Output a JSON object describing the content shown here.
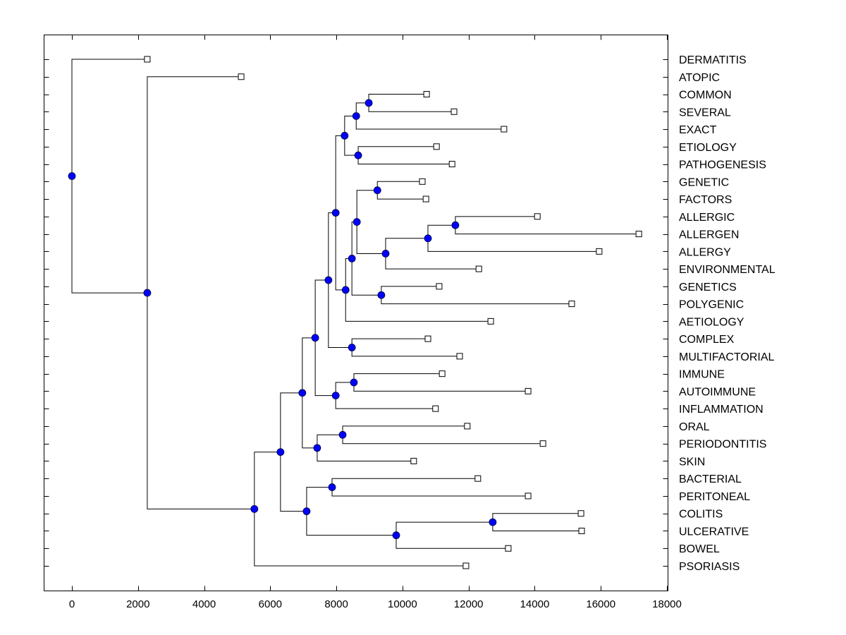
{
  "chart_data": {
    "type": "dendrogram",
    "title": "",
    "xlabel": "",
    "ylabel": "",
    "xlim": [
      -800,
      18000
    ],
    "xticks": [
      0,
      2000,
      4000,
      6000,
      8000,
      10000,
      12000,
      14000,
      16000,
      18000
    ],
    "xtick_labels": [
      "0",
      "2000",
      "4000",
      "6000",
      "8000",
      "10000",
      "12000",
      "14000",
      "16000",
      "18000"
    ],
    "grid": false,
    "legend": "none",
    "node_color": "#0000ff",
    "leaf_marker": "square",
    "leaves": [
      {
        "label": "DERMATITIS",
        "value": 2280
      },
      {
        "label": "ATOPIC",
        "value": 5120
      },
      {
        "label": "COMMON",
        "value": 10730
      },
      {
        "label": "SEVERAL",
        "value": 11560
      },
      {
        "label": "EXACT",
        "value": 13070
      },
      {
        "label": "ETIOLOGY",
        "value": 11030
      },
      {
        "label": "PATHOGENESIS",
        "value": 11500
      },
      {
        "label": "GENETIC",
        "value": 10600
      },
      {
        "label": "FACTORS",
        "value": 10710
      },
      {
        "label": "ALLERGIC",
        "value": 14080
      },
      {
        "label": "ALLERGEN",
        "value": 17150
      },
      {
        "label": "ALLERGY",
        "value": 15950
      },
      {
        "label": "ENVIRONMENTAL",
        "value": 12310
      },
      {
        "label": "GENETICS",
        "value": 11110
      },
      {
        "label": "POLYGENIC",
        "value": 15120
      },
      {
        "label": "AETIOLOGY",
        "value": 12670
      },
      {
        "label": "COMPLEX",
        "value": 10770
      },
      {
        "label": "MULTIFACTORIAL",
        "value": 11730
      },
      {
        "label": "IMMUNE",
        "value": 11200
      },
      {
        "label": "AUTOIMMUNE",
        "value": 13800
      },
      {
        "label": "INFLAMMATION",
        "value": 11000
      },
      {
        "label": "ORAL",
        "value": 11960
      },
      {
        "label": "PERIODONTITIS",
        "value": 14250
      },
      {
        "label": "SKIN",
        "value": 10340
      },
      {
        "label": "BACTERIAL",
        "value": 12280
      },
      {
        "label": "PERITONEAL",
        "value": 13800
      },
      {
        "label": "COLITIS",
        "value": 15400
      },
      {
        "label": "ULCERATIVE",
        "value": 15420
      },
      {
        "label": "BOWEL",
        "value": 13200
      },
      {
        "label": "PSORIASIS",
        "value": 11920
      }
    ],
    "nodes": [
      {
        "id": "n_common_several",
        "value": 8980,
        "children": [
          "COMMON",
          "SEVERAL"
        ]
      },
      {
        "id": "n_exact",
        "value": 8600,
        "children": [
          "n_common_several",
          "EXACT"
        ]
      },
      {
        "id": "n_etiol_patho",
        "value": 8660,
        "children": [
          "ETIOLOGY",
          "PATHOGENESIS"
        ]
      },
      {
        "id": "n_top",
        "value": 8250,
        "children": [
          "n_exact",
          "n_etiol_patho"
        ]
      },
      {
        "id": "n_genetic_factors",
        "value": 9240,
        "children": [
          "GENETIC",
          "FACTORS"
        ]
      },
      {
        "id": "n_allergic_allergen",
        "value": 11600,
        "children": [
          "ALLERGIC",
          "ALLERGEN"
        ]
      },
      {
        "id": "n_allergy",
        "value": 10770,
        "children": [
          "n_allergic_allergen",
          "ALLERGY"
        ]
      },
      {
        "id": "n_environmental",
        "value": 9490,
        "children": [
          "n_allergy",
          "ENVIRONMENTAL"
        ]
      },
      {
        "id": "n_gen_allergy",
        "value": 8620,
        "children": [
          "n_genetic_factors",
          "n_environmental"
        ]
      },
      {
        "id": "n_genetics_polygenic",
        "value": 9360,
        "children": [
          "GENETICS",
          "POLYGENIC"
        ]
      },
      {
        "id": "n_mid1",
        "value": 8470,
        "children": [
          "n_gen_allergy",
          "n_genetics_polygenic"
        ]
      },
      {
        "id": "n_aetiology",
        "value": 8280,
        "children": [
          "n_mid1",
          "AETIOLOGY"
        ]
      },
      {
        "id": "n_mid2",
        "value": 7980,
        "children": [
          "n_top",
          "n_aetiology"
        ]
      },
      {
        "id": "n_complex_multi",
        "value": 8470,
        "children": [
          "COMPLEX",
          "MULTIFACTORIAL"
        ]
      },
      {
        "id": "n_mid3",
        "value": 7760,
        "children": [
          "n_mid2",
          "n_complex_multi"
        ]
      },
      {
        "id": "n_immune_auto",
        "value": 8530,
        "children": [
          "IMMUNE",
          "AUTOIMMUNE"
        ]
      },
      {
        "id": "n_inflammation",
        "value": 7980,
        "children": [
          "n_immune_auto",
          "INFLAMMATION"
        ]
      },
      {
        "id": "n_mid4",
        "value": 7360,
        "children": [
          "n_mid3",
          "n_inflammation"
        ]
      },
      {
        "id": "n_oral_perio",
        "value": 8190,
        "children": [
          "ORAL",
          "PERIODONTITIS"
        ]
      },
      {
        "id": "n_skin",
        "value": 7420,
        "children": [
          "n_oral_perio",
          "SKIN"
        ]
      },
      {
        "id": "n_mid5",
        "value": 6970,
        "children": [
          "n_mid4",
          "n_skin"
        ]
      },
      {
        "id": "n_bact_perit",
        "value": 7870,
        "children": [
          "BACTERIAL",
          "PERITONEAL"
        ]
      },
      {
        "id": "n_colitis_ulc",
        "value": 12730,
        "children": [
          "COLITIS",
          "ULCERATIVE"
        ]
      },
      {
        "id": "n_bowel",
        "value": 9810,
        "children": [
          "n_colitis_ulc",
          "BOWEL"
        ]
      },
      {
        "id": "n_gut",
        "value": 7100,
        "children": [
          "n_bact_perit",
          "n_bowel"
        ]
      },
      {
        "id": "n_mid6",
        "value": 6310,
        "children": [
          "n_mid5",
          "n_gut"
        ]
      },
      {
        "id": "n_psoriasis",
        "value": 5520,
        "children": [
          "n_mid6",
          "PSORIASIS"
        ]
      },
      {
        "id": "n_atopic",
        "value": 2280,
        "children": [
          "ATOPIC",
          "n_psoriasis"
        ]
      },
      {
        "id": "n_root",
        "value": 0,
        "children": [
          "DERMATITIS",
          "n_atopic"
        ]
      }
    ]
  }
}
